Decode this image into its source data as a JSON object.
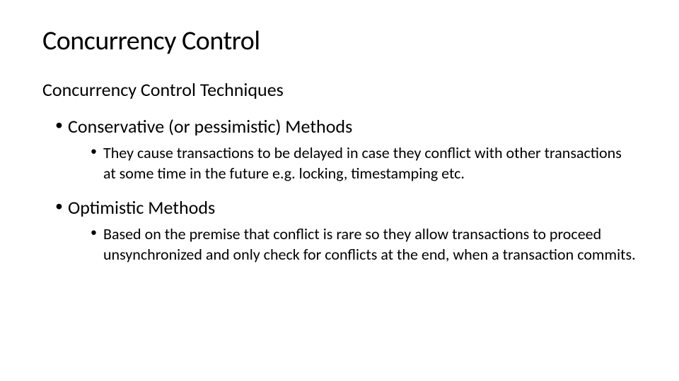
{
  "slide": {
    "title": "Concurrency Control",
    "subtitle": "Concurrency Control Techniques",
    "items": [
      {
        "heading": "Conservative (or pessimistic) Methods",
        "detail": "They cause transactions to be delayed in case they conflict with other transactions at some time in the future e.g. locking, timestamping etc."
      },
      {
        "heading": "Optimistic Methods",
        "detail": "Based on the premise that conflict is rare so they allow transactions to proceed unsynchronized and only check for conflicts at the end, when a transaction commits."
      }
    ]
  },
  "styling": {
    "background_color": "#ffffff",
    "text_color": "#000000",
    "title_fontsize": 38,
    "subtitle_fontsize": 26,
    "bullet_l1_fontsize": 26,
    "bullet_l2_fontsize": 22,
    "font_family": "Calibri",
    "slide_width": 960,
    "slide_height": 540
  }
}
